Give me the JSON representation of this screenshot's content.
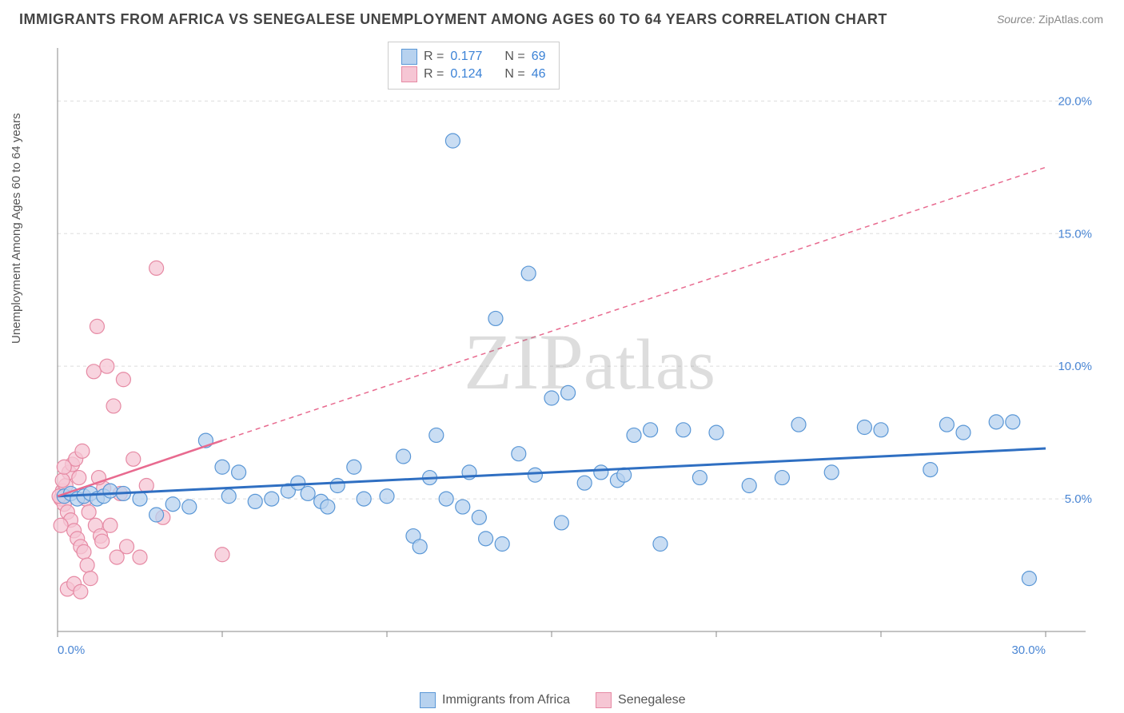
{
  "title": "IMMIGRANTS FROM AFRICA VS SENEGALESE UNEMPLOYMENT AMONG AGES 60 TO 64 YEARS CORRELATION CHART",
  "source_label": "Source:",
  "source_value": "ZipAtlas.com",
  "y_axis_label": "Unemployment Among Ages 60 to 64 years",
  "watermark": "ZIPatlas",
  "chart": {
    "type": "scatter",
    "xlim": [
      0,
      30
    ],
    "ylim": [
      0,
      22
    ],
    "x_ticks": [
      0,
      5,
      10,
      15,
      20,
      25,
      30
    ],
    "y_ticks": [
      5,
      10,
      15,
      20
    ],
    "x_tick_labels": [
      "0.0%",
      "",
      "",
      "",
      "",
      "",
      "30.0%"
    ],
    "y_tick_labels": [
      "5.0%",
      "10.0%",
      "15.0%",
      "20.0%"
    ],
    "grid_y": [
      5,
      10,
      15,
      20
    ],
    "background_color": "#ffffff",
    "grid_color": "#dddddd",
    "axis_color": "#888888",
    "tick_label_color": "#4a86d4",
    "marker_radius": 9,
    "marker_stroke_width": 1.2,
    "series": [
      {
        "name": "Immigrants from Africa",
        "fill": "#b7d2ef",
        "stroke": "#5a97d6",
        "fill_opacity": 0.75,
        "R": "0.177",
        "N": "69",
        "points": [
          [
            0.2,
            5.1
          ],
          [
            0.4,
            5.2
          ],
          [
            0.6,
            5.0
          ],
          [
            0.8,
            5.1
          ],
          [
            1.0,
            5.2
          ],
          [
            1.2,
            5.0
          ],
          [
            1.4,
            5.1
          ],
          [
            1.6,
            5.3
          ],
          [
            2.0,
            5.2
          ],
          [
            2.5,
            5.0
          ],
          [
            3.0,
            4.4
          ],
          [
            3.5,
            4.8
          ],
          [
            4.0,
            4.7
          ],
          [
            4.5,
            7.2
          ],
          [
            5.0,
            6.2
          ],
          [
            5.2,
            5.1
          ],
          [
            5.5,
            6.0
          ],
          [
            6.0,
            4.9
          ],
          [
            6.5,
            5.0
          ],
          [
            7.0,
            5.3
          ],
          [
            7.3,
            5.6
          ],
          [
            7.6,
            5.2
          ],
          [
            8.0,
            4.9
          ],
          [
            8.2,
            4.7
          ],
          [
            8.5,
            5.5
          ],
          [
            9.0,
            6.2
          ],
          [
            9.3,
            5.0
          ],
          [
            10.0,
            5.1
          ],
          [
            10.5,
            6.6
          ],
          [
            10.8,
            3.6
          ],
          [
            11.0,
            3.2
          ],
          [
            11.3,
            5.8
          ],
          [
            11.5,
            7.4
          ],
          [
            11.8,
            5.0
          ],
          [
            12.0,
            18.5
          ],
          [
            12.3,
            4.7
          ],
          [
            12.5,
            6.0
          ],
          [
            12.8,
            4.3
          ],
          [
            13.0,
            3.5
          ],
          [
            13.3,
            11.8
          ],
          [
            13.5,
            3.3
          ],
          [
            14.0,
            6.7
          ],
          [
            14.3,
            13.5
          ],
          [
            14.5,
            5.9
          ],
          [
            15.0,
            8.8
          ],
          [
            15.3,
            4.1
          ],
          [
            15.5,
            9.0
          ],
          [
            16.0,
            5.6
          ],
          [
            16.5,
            6.0
          ],
          [
            17.0,
            5.7
          ],
          [
            17.2,
            5.9
          ],
          [
            17.5,
            7.4
          ],
          [
            18.0,
            7.6
          ],
          [
            18.3,
            3.3
          ],
          [
            19.0,
            7.6
          ],
          [
            19.5,
            5.8
          ],
          [
            20.0,
            7.5
          ],
          [
            21.0,
            5.5
          ],
          [
            22.0,
            5.8
          ],
          [
            22.5,
            7.8
          ],
          [
            23.5,
            6.0
          ],
          [
            24.5,
            7.7
          ],
          [
            25.0,
            7.6
          ],
          [
            26.5,
            6.1
          ],
          [
            27.0,
            7.8
          ],
          [
            27.5,
            7.5
          ],
          [
            28.5,
            7.9
          ],
          [
            29.5,
            2.0
          ],
          [
            29.0,
            7.9
          ]
        ],
        "trend": {
          "x0": 0,
          "y0": 5.1,
          "x1": 30,
          "y1": 6.9,
          "color": "#2f6fc2",
          "width": 3,
          "dash": "none"
        }
      },
      {
        "name": "Senegalese",
        "fill": "#f6c6d4",
        "stroke": "#e68aa4",
        "fill_opacity": 0.75,
        "R": "0.124",
        "N": "46",
        "points": [
          [
            0.1,
            5.0
          ],
          [
            0.15,
            5.3
          ],
          [
            0.2,
            4.8
          ],
          [
            0.25,
            5.5
          ],
          [
            0.3,
            4.5
          ],
          [
            0.35,
            6.0
          ],
          [
            0.4,
            4.2
          ],
          [
            0.45,
            6.3
          ],
          [
            0.5,
            3.8
          ],
          [
            0.55,
            6.5
          ],
          [
            0.6,
            3.5
          ],
          [
            0.65,
            5.8
          ],
          [
            0.7,
            3.2
          ],
          [
            0.75,
            6.8
          ],
          [
            0.8,
            3.0
          ],
          [
            0.85,
            5.0
          ],
          [
            0.9,
            2.5
          ],
          [
            0.95,
            4.5
          ],
          [
            1.0,
            2.0
          ],
          [
            1.1,
            9.8
          ],
          [
            1.15,
            4.0
          ],
          [
            1.2,
            11.5
          ],
          [
            1.3,
            3.6
          ],
          [
            1.4,
            5.4
          ],
          [
            1.5,
            10.0
          ],
          [
            1.6,
            4.0
          ],
          [
            1.7,
            8.5
          ],
          [
            1.8,
            2.8
          ],
          [
            1.9,
            5.2
          ],
          [
            2.0,
            9.5
          ],
          [
            2.1,
            3.2
          ],
          [
            2.3,
            6.5
          ],
          [
            2.5,
            2.8
          ],
          [
            2.7,
            5.5
          ],
          [
            3.0,
            13.7
          ],
          [
            3.2,
            4.3
          ],
          [
            0.3,
            1.6
          ],
          [
            0.5,
            1.8
          ],
          [
            0.7,
            1.5
          ],
          [
            0.15,
            5.7
          ],
          [
            0.05,
            5.1
          ],
          [
            1.35,
            3.4
          ],
          [
            1.25,
            5.8
          ],
          [
            5.0,
            2.9
          ],
          [
            0.1,
            4.0
          ],
          [
            0.2,
            6.2
          ]
        ],
        "trend_solid": {
          "x0": 0,
          "y0": 5.1,
          "x1": 5,
          "y1": 7.2,
          "color": "#e86a8f",
          "width": 2.5
        },
        "trend_dash": {
          "x0": 5,
          "y0": 7.2,
          "x1": 30,
          "y1": 17.5,
          "color": "#e86a8f",
          "width": 1.5,
          "dash": "6 5"
        }
      }
    ]
  },
  "legend": {
    "series1": "Immigrants from Africa",
    "series2": "Senegalese"
  },
  "stats_labels": {
    "R": "R =",
    "N": "N ="
  }
}
